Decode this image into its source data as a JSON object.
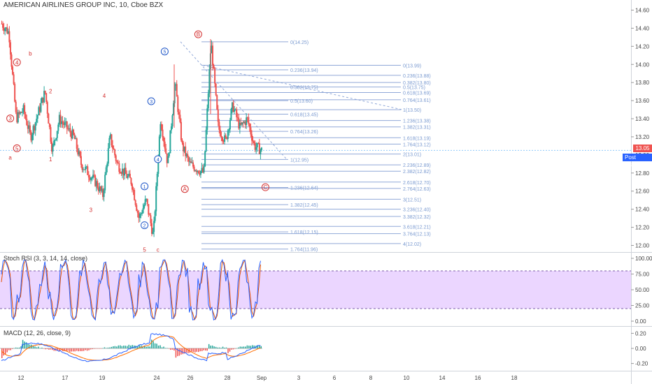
{
  "header": {
    "title": "AMERICAN AIRLINES GROUP INC, 10, Cboe BZX"
  },
  "panels": {
    "stoch_title": "Stoch RSI (3, 3, 14, 14, close)",
    "macd_title": "MACD (12, 26, close, 9)"
  },
  "price_scale": {
    "ticks": [
      "14.60",
      "14.40",
      "14.20",
      "14.00",
      "13.80",
      "13.60",
      "13.40",
      "13.20",
      "13.00",
      "12.80",
      "12.60",
      "12.40",
      "12.20",
      "12.00"
    ],
    "last_price": "13.05",
    "post_label": "Post",
    "post_price": "13.05"
  },
  "stoch_scale": {
    "ticks": [
      "100.00",
      "75.00",
      "50.00",
      "25.00",
      "0.00"
    ]
  },
  "macd_scale": {
    "ticks": [
      "0.20",
      "0.00",
      "-0.20"
    ]
  },
  "time_axis": {
    "ticks": [
      "12",
      "17",
      "19",
      "24",
      "26",
      "28",
      "Sep",
      "3",
      "6",
      "8",
      "10",
      "14",
      "16",
      "18"
    ]
  },
  "colors": {
    "up": "#26a69a",
    "down": "#ef5350",
    "fib": "#90a8d8",
    "fib_text": "#7a9ad0",
    "wave_red": "#d32f2f",
    "wave_blue": "#1e56c8",
    "stoch_band": "#e6ccff",
    "stoch_k": "#2962ff",
    "stoch_d": "#e65100",
    "macd_line": "#2962ff",
    "signal_line": "#ff6d00",
    "last_price": "#ef5350",
    "post": "#2962ff"
  },
  "fib_left_labels": [
    {
      "text": "0(14.25)",
      "price": 14.25
    },
    {
      "text": "0.236(13.94)",
      "price": 13.94
    },
    {
      "text": "0.382(13.75)",
      "price": 13.75
    },
    {
      "text": "0.5(13.60)",
      "price": 13.6
    },
    {
      "text": "0.618(13.45)",
      "price": 13.45
    },
    {
      "text": "0.764(13.26)",
      "price": 13.26
    },
    {
      "text": "1(12.95)",
      "price": 12.95
    },
    {
      "text": "1.236(12.64)",
      "price": 12.64
    },
    {
      "text": "1.382(12.45)",
      "price": 12.45
    },
    {
      "text": "1.618(12.15)",
      "price": 12.15
    },
    {
      "text": "1.764(11.96)",
      "price": 11.96
    }
  ],
  "fib_right_labels": [
    {
      "text": "0(13.99)",
      "price": 13.99
    },
    {
      "text": "0.236(13.88)",
      "price": 13.88
    },
    {
      "text": "0.382(13.80)",
      "price": 13.8
    },
    {
      "text": "0.5(13.75)",
      "price": 13.75
    },
    {
      "text": "0.618(13.69)",
      "price": 13.69
    },
    {
      "text": "0.764(13.61)",
      "price": 13.61
    },
    {
      "text": "1(13.50)",
      "price": 13.5
    },
    {
      "text": "1.236(13.38)",
      "price": 13.38
    },
    {
      "text": "1.382(13.31)",
      "price": 13.31
    },
    {
      "text": "1.618(13.19)",
      "price": 13.19
    },
    {
      "text": "1.764(13.12)",
      "price": 13.12
    },
    {
      "text": "2(13.01)",
      "price": 13.01
    },
    {
      "text": "2.236(12.89)",
      "price": 12.89
    },
    {
      "text": "2.382(12.82)",
      "price": 12.82
    },
    {
      "text": "2.618(12.70)",
      "price": 12.7
    },
    {
      "text": "2.764(12.63)",
      "price": 12.63
    },
    {
      "text": "3(12.51)",
      "price": 12.51
    },
    {
      "text": "3.236(12.40)",
      "price": 12.4
    },
    {
      "text": "3.382(12.32)",
      "price": 12.32
    },
    {
      "text": "3.618(12.21)",
      "price": 12.21
    },
    {
      "text": "3.764(12.13)",
      "price": 12.13
    },
    {
      "text": "4(12.02)",
      "price": 12.02
    }
  ],
  "wave_labels_red": [
    {
      "text": "4",
      "circled": true,
      "price": 14.0,
      "day": 2
    },
    {
      "text": "b",
      "circled": false,
      "price": 14.1,
      "day": 4
    },
    {
      "text": "3",
      "circled": true,
      "price": 13.38,
      "day": 1
    },
    {
      "text": "5",
      "circled": true,
      "price": 13.05,
      "day": 2
    },
    {
      "text": "a",
      "circled": false,
      "price": 12.95,
      "day": 1
    },
    {
      "text": "2",
      "circled": false,
      "price": 13.68,
      "day": 7
    },
    {
      "text": "1",
      "circled": false,
      "price": 12.93,
      "day": 7
    },
    {
      "text": "4",
      "circled": false,
      "price": 13.63,
      "day": 15
    },
    {
      "text": "3",
      "circled": false,
      "price": 12.37,
      "day": 13
    },
    {
      "text": "5",
      "circled": false,
      "price": 11.93,
      "day": 21
    },
    {
      "text": "c",
      "circled": false,
      "price": 11.93,
      "day": 23
    },
    {
      "text": "B",
      "circled": true,
      "price": 14.31,
      "day": 29
    },
    {
      "text": "A",
      "circled": true,
      "price": 12.6,
      "day": 27
    },
    {
      "text": "C",
      "circled": true,
      "price": 12.62,
      "day": 39
    }
  ],
  "wave_labels_blue": [
    {
      "text": "5",
      "price": 14.12,
      "day": 24
    },
    {
      "text": "3",
      "price": 13.57,
      "day": 22
    },
    {
      "text": "4",
      "price": 12.93,
      "day": 23
    },
    {
      "text": "1",
      "price": 12.63,
      "day": 21
    },
    {
      "text": "2",
      "price": 12.2,
      "day": 21
    }
  ],
  "chart_data": {
    "type": "candlestick",
    "title": "AMERICAN AIRLINES GROUP INC, 10, Cboe BZX",
    "ylim": [
      11.95,
      14.65
    ],
    "price_path": [
      [
        0,
        14.45
      ],
      [
        1,
        14.35
      ],
      [
        2,
        13.4
      ],
      [
        3,
        13.5
      ],
      [
        4,
        13.2
      ],
      [
        5,
        13.45
      ],
      [
        6,
        13.7
      ],
      [
        7,
        13.05
      ],
      [
        8,
        13.4
      ],
      [
        9,
        13.3
      ],
      [
        10,
        13.2
      ],
      [
        11,
        12.9
      ],
      [
        12,
        12.8
      ],
      [
        13,
        12.7
      ],
      [
        14,
        12.55
      ],
      [
        15,
        13.2
      ],
      [
        16,
        12.9
      ],
      [
        17,
        12.8
      ],
      [
        18,
        12.7
      ],
      [
        19,
        12.3
      ],
      [
        20,
        12.5
      ],
      [
        21,
        12.1
      ],
      [
        22,
        13.4
      ],
      [
        23,
        12.9
      ],
      [
        24,
        13.8
      ],
      [
        25,
        13.1
      ],
      [
        26,
        12.9
      ],
      [
        27,
        12.85
      ],
      [
        28,
        12.8
      ],
      [
        29,
        14.25
      ],
      [
        30,
        13.3
      ],
      [
        31,
        13.15
      ],
      [
        32,
        13.55
      ],
      [
        33,
        13.3
      ],
      [
        34,
        13.4
      ],
      [
        35,
        13.1
      ],
      [
        36,
        13.05
      ]
    ],
    "stoch_rsi": {
      "band": [
        20,
        80
      ],
      "ylim": [
        0,
        100
      ]
    },
    "macd": {
      "ylim": [
        -0.25,
        0.25
      ]
    }
  }
}
